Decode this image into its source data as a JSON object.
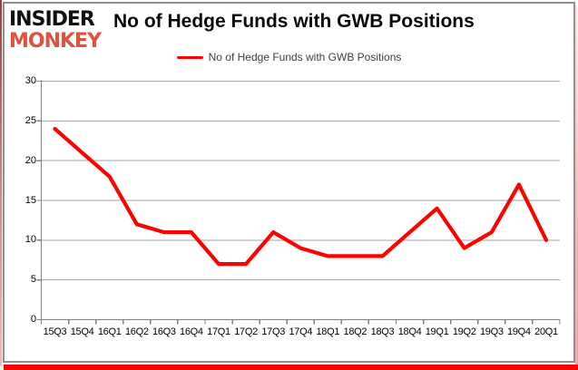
{
  "logo": {
    "line1": "INSIDER",
    "line2": "MONKEY"
  },
  "header": {
    "title": "No of Hedge Funds with GWB Positions"
  },
  "legend": {
    "label": "No of Hedge Funds with GWB Positions"
  },
  "colors": {
    "line": "#fe0000",
    "grid": "#a6a6a6",
    "axis": "#7f7f7f",
    "tick_text": "#000000",
    "legend_text": "#3f3f3f",
    "logo_black": "#111111",
    "logo_red": "#e0513f",
    "frame_gray": "#909090",
    "border_red": "#fe0000"
  },
  "chart_data": {
    "type": "line",
    "title": "No of Hedge Funds with GWB Positions",
    "categories": [
      "15Q3",
      "15Q4",
      "16Q1",
      "16Q2",
      "16Q3",
      "16Q4",
      "17Q1",
      "17Q2",
      "17Q3",
      "17Q4",
      "18Q1",
      "18Q2",
      "18Q3",
      "18Q4",
      "19Q1",
      "19Q2",
      "19Q3",
      "19Q4",
      "20Q1"
    ],
    "series": [
      {
        "name": "No of Hedge Funds with GWB Positions",
        "color": "#fe0000",
        "values": [
          24,
          21,
          18,
          12,
          11,
          11,
          7,
          7,
          11,
          9,
          8,
          8,
          8,
          11,
          14,
          9,
          11,
          17,
          10
        ]
      }
    ],
    "ylim": [
      0,
      30
    ],
    "yticks": [
      0,
      5,
      10,
      15,
      20,
      25,
      30
    ],
    "grid": true,
    "legend_position": "top-center"
  }
}
